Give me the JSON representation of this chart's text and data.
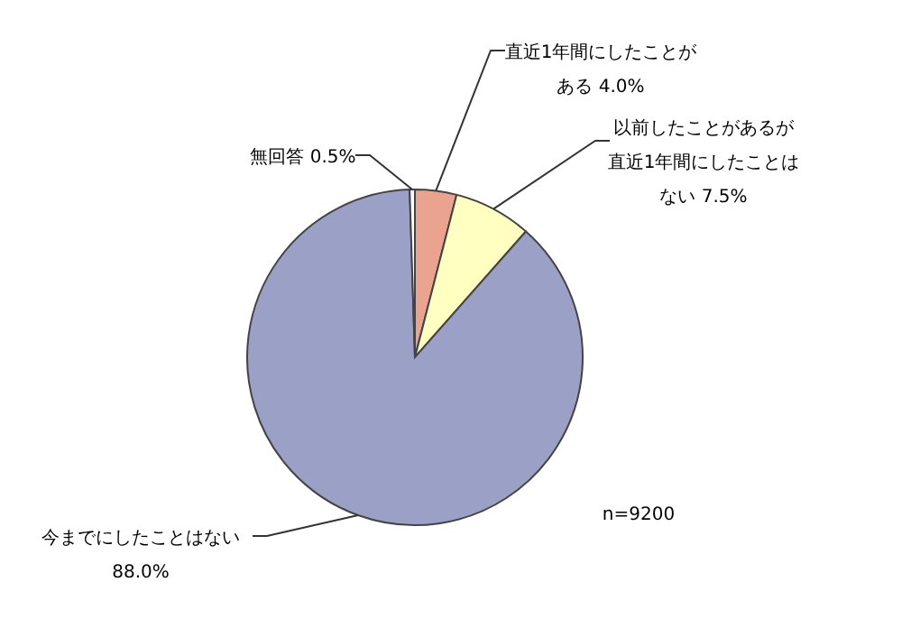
{
  "chart_data": {
    "type": "pie",
    "categories": [
      "直近1年間にしたことがある",
      "以前したことがあるが直近1年間にしたことはない",
      "今までにしたことはない",
      "無回答"
    ],
    "values": [
      4.0,
      7.5,
      88.0,
      0.5
    ],
    "value_labels": [
      "4.0%",
      "7.5%",
      "88.0%",
      "0.5%"
    ],
    "colors": [
      "#eaa38f",
      "#ffffc0",
      "#9aa0c6",
      "#ffffff"
    ],
    "annotations": [
      {
        "text": "n=9200"
      }
    ]
  }
}
